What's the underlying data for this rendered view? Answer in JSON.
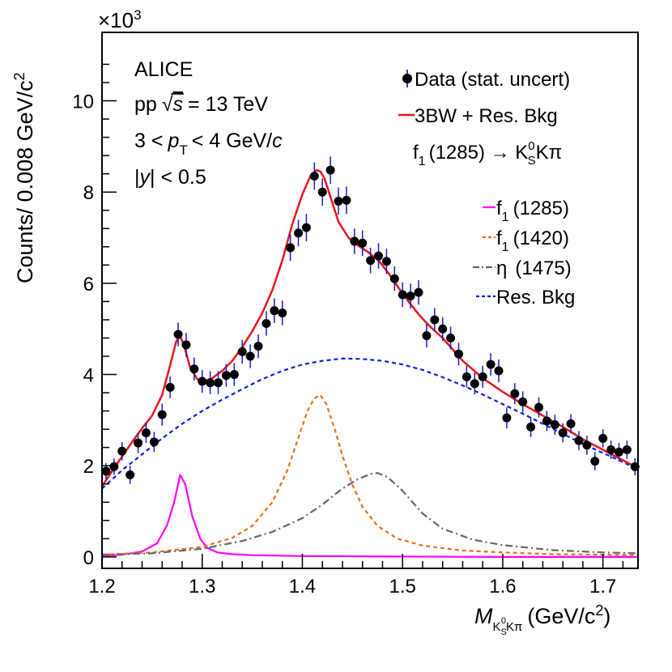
{
  "chart_data": {
    "type": "scatter",
    "title": "",
    "xlabel_main": "M",
    "xlabel_sub": "K",
    "xlabel_sub_s": "S",
    "xlabel_sub_sup": "0",
    "xlabel_sub_rest": "Kπ",
    "xlabel_unit": "(GeV/c",
    "xlabel_unit_sup": "2",
    "xlabel_unit_close": ")",
    "ylabel": "Counts/ 0.008 GeV/c",
    "ylabel_sup": "2",
    "y_multiplier": "×10",
    "y_multiplier_sup": "3",
    "xlim": [
      1.2,
      1.735
    ],
    "ylim": [
      -0.25,
      11.5
    ],
    "x_ticks": [
      1.2,
      1.3,
      1.4,
      1.5,
      1.6,
      1.7
    ],
    "x_tick_labels": [
      "1.2",
      "1.3",
      "1.4",
      "1.5",
      "1.6",
      "1.7"
    ],
    "y_ticks": [
      0,
      2,
      4,
      6,
      8,
      10
    ],
    "y_tick_labels": [
      "0",
      "2",
      "4",
      "6",
      "8",
      "10"
    ],
    "annotations": {
      "experiment": "ALICE",
      "system_pre": "pp",
      "system_sqrt": "√",
      "system_s": "s",
      "system_post": "= 13 TeV",
      "pt_pre": "3 <",
      "pt_p": "p",
      "pt_sub": "T",
      "pt_post": "< 4 GeV/",
      "pt_c": "c",
      "rap_pre": "|",
      "rap_y": "y",
      "rap_post": "| < 0.5"
    },
    "legend_top": [
      {
        "label": "Data (stat. uncert)",
        "style": "marker"
      },
      {
        "label": "3BW + Res. Bkg",
        "style": "line",
        "color": "#e8141c"
      }
    ],
    "decay": {
      "pre": "f",
      "sub": "1",
      "mass": "(1285) → K",
      "k_sup": "0",
      "k_sub": "S",
      "post": "Kπ"
    },
    "legend_bottom": [
      {
        "pre": "f",
        "sub": "1",
        "post": "(1285)",
        "color": "#ff00ff",
        "dash": ""
      },
      {
        "pre": "f",
        "sub": "1",
        "post": "(1420)",
        "color": "#f26c13",
        "dash": "5,4"
      },
      {
        "pre": "η",
        "sub": "",
        "post": "(1475)",
        "color": "#666666",
        "dash": "9,4,2,4"
      },
      {
        "pre": "Res. Bkg",
        "sub": "",
        "post": "",
        "color": "#0a1fe0",
        "dash": "5,4"
      }
    ],
    "series": [
      {
        "name": "Data (stat. uncert)",
        "x": [
          1.204,
          1.212,
          1.22,
          1.228,
          1.236,
          1.244,
          1.252,
          1.26,
          1.268,
          1.276,
          1.284,
          1.292,
          1.3,
          1.308,
          1.316,
          1.324,
          1.332,
          1.34,
          1.348,
          1.356,
          1.364,
          1.372,
          1.38,
          1.388,
          1.396,
          1.404,
          1.412,
          1.42,
          1.428,
          1.436,
          1.444,
          1.452,
          1.46,
          1.468,
          1.476,
          1.484,
          1.492,
          1.5,
          1.508,
          1.516,
          1.524,
          1.532,
          1.54,
          1.548,
          1.556,
          1.564,
          1.572,
          1.58,
          1.588,
          1.596,
          1.604,
          1.612,
          1.62,
          1.628,
          1.636,
          1.644,
          1.652,
          1.66,
          1.668,
          1.676,
          1.684,
          1.692,
          1.7,
          1.708,
          1.716,
          1.724,
          1.732
        ],
        "y": [
          1.88,
          1.98,
          2.32,
          1.8,
          2.5,
          2.72,
          2.52,
          3.12,
          3.72,
          4.88,
          4.65,
          4.12,
          3.85,
          3.82,
          3.82,
          3.98,
          4.0,
          4.5,
          4.4,
          4.62,
          5.12,
          5.4,
          5.35,
          6.78,
          7.1,
          7.22,
          8.35,
          8.0,
          8.48,
          7.8,
          7.82,
          6.92,
          6.88,
          6.5,
          6.6,
          6.48,
          6.1,
          5.75,
          5.72,
          5.8,
          4.85,
          5.2,
          5.0,
          4.8,
          4.45,
          3.95,
          3.8,
          3.95,
          4.22,
          4.08,
          3.05,
          3.58,
          3.4,
          2.85,
          3.28,
          2.98,
          2.9,
          2.72,
          2.92,
          2.55,
          2.45,
          2.1,
          2.6,
          2.35,
          2.3,
          2.35,
          1.98
        ],
        "err": [
          0.18,
          0.18,
          0.2,
          0.2,
          0.22,
          0.22,
          0.22,
          0.24,
          0.24,
          0.26,
          0.26,
          0.25,
          0.25,
          0.25,
          0.25,
          0.25,
          0.25,
          0.26,
          0.26,
          0.26,
          0.27,
          0.27,
          0.27,
          0.29,
          0.29,
          0.3,
          0.3,
          0.3,
          0.3,
          0.3,
          0.3,
          0.28,
          0.28,
          0.28,
          0.28,
          0.28,
          0.27,
          0.27,
          0.27,
          0.27,
          0.26,
          0.26,
          0.26,
          0.25,
          0.25,
          0.24,
          0.24,
          0.24,
          0.25,
          0.25,
          0.23,
          0.23,
          0.23,
          0.22,
          0.22,
          0.22,
          0.22,
          0.21,
          0.21,
          0.21,
          0.21,
          0.2,
          0.2,
          0.2,
          0.2,
          0.2,
          0.19
        ]
      },
      {
        "name": "3BW + Res. Bkg",
        "x": [
          1.2,
          1.21,
          1.22,
          1.23,
          1.24,
          1.25,
          1.26,
          1.268,
          1.274,
          1.278,
          1.282,
          1.288,
          1.295,
          1.302,
          1.31,
          1.32,
          1.33,
          1.34,
          1.35,
          1.36,
          1.37,
          1.38,
          1.39,
          1.4,
          1.408,
          1.414,
          1.418,
          1.422,
          1.428,
          1.436,
          1.446,
          1.456,
          1.466,
          1.476,
          1.486,
          1.496,
          1.506,
          1.516,
          1.526,
          1.54,
          1.56,
          1.58,
          1.6,
          1.62,
          1.64,
          1.66,
          1.68,
          1.7,
          1.72,
          1.735
        ],
        "y": [
          1.55,
          1.88,
          2.2,
          2.52,
          2.82,
          3.1,
          3.55,
          4.2,
          4.72,
          4.85,
          4.62,
          4.15,
          3.9,
          3.85,
          3.92,
          4.08,
          4.3,
          4.6,
          4.95,
          5.35,
          5.85,
          6.5,
          7.3,
          7.95,
          8.35,
          8.48,
          8.45,
          8.3,
          7.9,
          7.35,
          7.0,
          6.82,
          6.68,
          6.5,
          6.22,
          5.9,
          5.6,
          5.32,
          5.08,
          4.8,
          4.3,
          3.92,
          3.62,
          3.35,
          3.1,
          2.85,
          2.58,
          2.35,
          2.12,
          1.95
        ],
        "color": "#e8141c"
      },
      {
        "name": "f1 (1285)",
        "x": [
          1.2,
          1.22,
          1.24,
          1.255,
          1.265,
          1.272,
          1.278,
          1.283,
          1.29,
          1.298,
          1.305,
          1.315,
          1.33,
          1.35,
          1.4,
          1.5,
          1.6,
          1.735
        ],
        "y": [
          0.02,
          0.05,
          0.12,
          0.3,
          0.7,
          1.2,
          1.8,
          1.6,
          0.9,
          0.4,
          0.2,
          0.1,
          0.06,
          0.04,
          0.02,
          0.01,
          0.0,
          0.0
        ],
        "color": "#ff00ff"
      },
      {
        "name": "f1 (1420)",
        "x": [
          1.2,
          1.25,
          1.3,
          1.33,
          1.35,
          1.37,
          1.385,
          1.395,
          1.405,
          1.412,
          1.418,
          1.424,
          1.432,
          1.44,
          1.45,
          1.46,
          1.475,
          1.495,
          1.52,
          1.56,
          1.6,
          1.65,
          1.7,
          1.735
        ],
        "y": [
          0.05,
          0.1,
          0.22,
          0.42,
          0.68,
          1.2,
          1.9,
          2.55,
          3.2,
          3.48,
          3.55,
          3.35,
          2.82,
          2.22,
          1.58,
          1.1,
          0.68,
          0.4,
          0.25,
          0.14,
          0.1,
          0.06,
          0.05,
          0.04
        ],
        "color": "#f26c13"
      },
      {
        "name": "η (1475)",
        "x": [
          1.2,
          1.25,
          1.3,
          1.34,
          1.37,
          1.4,
          1.42,
          1.44,
          1.455,
          1.468,
          1.475,
          1.485,
          1.5,
          1.52,
          1.54,
          1.57,
          1.6,
          1.65,
          1.7,
          1.735
        ],
        "y": [
          0.05,
          0.08,
          0.18,
          0.35,
          0.55,
          0.85,
          1.15,
          1.5,
          1.7,
          1.82,
          1.84,
          1.75,
          1.45,
          0.95,
          0.62,
          0.38,
          0.26,
          0.15,
          0.1,
          0.08
        ],
        "color": "#666666"
      },
      {
        "name": "Res. Bkg",
        "x": [
          1.2,
          1.22,
          1.24,
          1.26,
          1.28,
          1.3,
          1.32,
          1.34,
          1.36,
          1.38,
          1.4,
          1.42,
          1.44,
          1.46,
          1.48,
          1.5,
          1.52,
          1.54,
          1.56,
          1.58,
          1.6,
          1.62,
          1.64,
          1.66,
          1.68,
          1.7,
          1.72,
          1.735
        ],
        "y": [
          1.5,
          1.9,
          2.25,
          2.6,
          2.92,
          3.2,
          3.45,
          3.68,
          3.9,
          4.08,
          4.22,
          4.3,
          4.35,
          4.34,
          4.3,
          4.22,
          4.1,
          3.94,
          3.76,
          3.56,
          3.35,
          3.14,
          2.92,
          2.7,
          2.48,
          2.28,
          2.08,
          1.92
        ],
        "color": "#0a1fe0"
      }
    ]
  }
}
